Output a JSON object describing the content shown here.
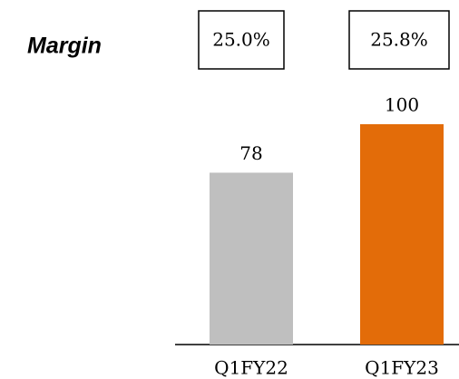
{
  "chart_data": {
    "type": "bar",
    "margin": {
      "label": "Margin",
      "values": [
        25.0,
        25.8
      ],
      "value_labels": [
        "25.0%",
        "25.8%"
      ]
    },
    "categories": [
      "Q1FY22",
      "Q1FY23"
    ],
    "values": [
      78,
      100
    ],
    "colors": [
      "#bfbfbf",
      "#e36c09"
    ]
  }
}
